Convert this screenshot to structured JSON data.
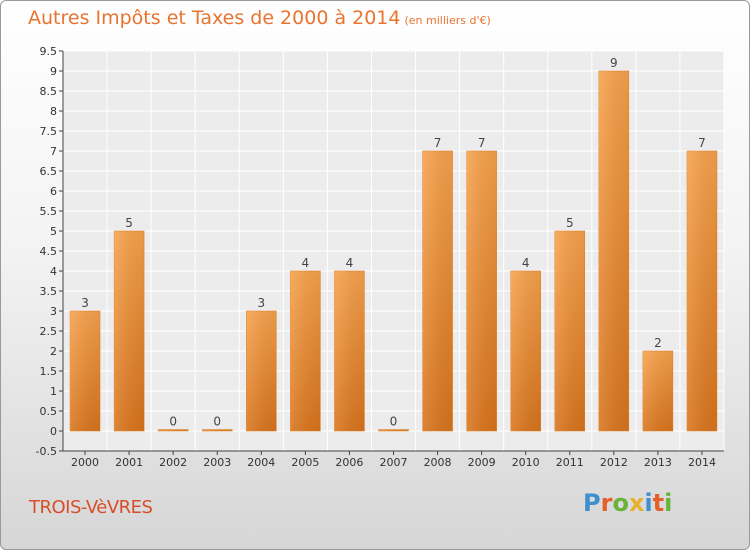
{
  "header": {
    "title": "Autres Impôts et Taxes de 2000 à 2014",
    "subtitle": "(en milliers d'€)"
  },
  "commune": "TROIS-VèVRES",
  "logo": {
    "letters": [
      "P",
      "r",
      "o",
      "x",
      "i",
      "t",
      "i"
    ],
    "colors": [
      "#3f8fd0",
      "#e65f2b",
      "#69b33a",
      "#e6b22e",
      "#3f8fd0",
      "#e65f2b",
      "#69b33a"
    ]
  },
  "chart_data": {
    "type": "bar",
    "categories": [
      "2000",
      "2001",
      "2002",
      "2003",
      "2004",
      "2005",
      "2006",
      "2007",
      "2008",
      "2009",
      "2010",
      "2011",
      "2012",
      "2013",
      "2014"
    ],
    "values": [
      3,
      5,
      0,
      0,
      3,
      4,
      4,
      0,
      7,
      7,
      4,
      5,
      9,
      2,
      7
    ],
    "data_labels": [
      "3",
      "5",
      "0",
      "0",
      "3",
      "4",
      "4",
      "0",
      "7",
      "7",
      "4",
      "5",
      "9",
      "2",
      "7"
    ],
    "yticks": [
      "-0.5",
      "0",
      "0.5",
      "1",
      "1.5",
      "2",
      "2.5",
      "3",
      "3.5",
      "4",
      "4.5",
      "5",
      "5.5",
      "6",
      "6.5",
      "7",
      "7.5",
      "8",
      "8.5",
      "9",
      "9.5"
    ],
    "ytick_values": [
      -0.5,
      0,
      0.5,
      1,
      1.5,
      2,
      2.5,
      3,
      3.5,
      4,
      4.5,
      5,
      5.5,
      6,
      6.5,
      7,
      7.5,
      8,
      8.5,
      9,
      9.5
    ],
    "ylim": [
      -0.5,
      9.5
    ],
    "grid": true,
    "bar_color": "#f0902f",
    "title": "Autres Impôts et Taxes de 2000 à 2014",
    "xlabel": "",
    "ylabel": ""
  }
}
